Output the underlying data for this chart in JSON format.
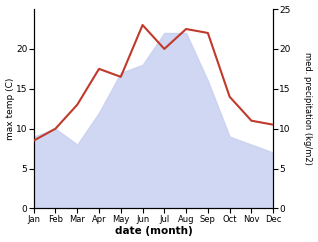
{
  "months": [
    "Jan",
    "Feb",
    "Mar",
    "Apr",
    "May",
    "Jun",
    "Jul",
    "Aug",
    "Sep",
    "Oct",
    "Nov",
    "Dec"
  ],
  "max_temp": [
    8.5,
    10.0,
    13.0,
    17.5,
    16.5,
    23.0,
    20.0,
    22.5,
    22.0,
    14.0,
    11.0,
    10.5
  ],
  "precipitation": [
    9.0,
    10.0,
    8.0,
    12.0,
    17.0,
    18.0,
    22.0,
    22.0,
    16.0,
    9.0,
    8.0,
    7.0
  ],
  "temp_color": "#c0392b",
  "precip_fill_color": "#c8d0f0",
  "temp_ylim": [
    0,
    25
  ],
  "precip_ylim": [
    0,
    25
  ],
  "xlabel": "date (month)",
  "ylabel_left": "max temp (C)",
  "ylabel_right": "med. precipitation (kg/m2)",
  "left_yticks": [
    0,
    5,
    10,
    15,
    20
  ],
  "right_yticks": [
    0,
    5,
    10,
    15,
    20,
    25
  ],
  "figsize": [
    3.18,
    2.42
  ],
  "dpi": 100
}
